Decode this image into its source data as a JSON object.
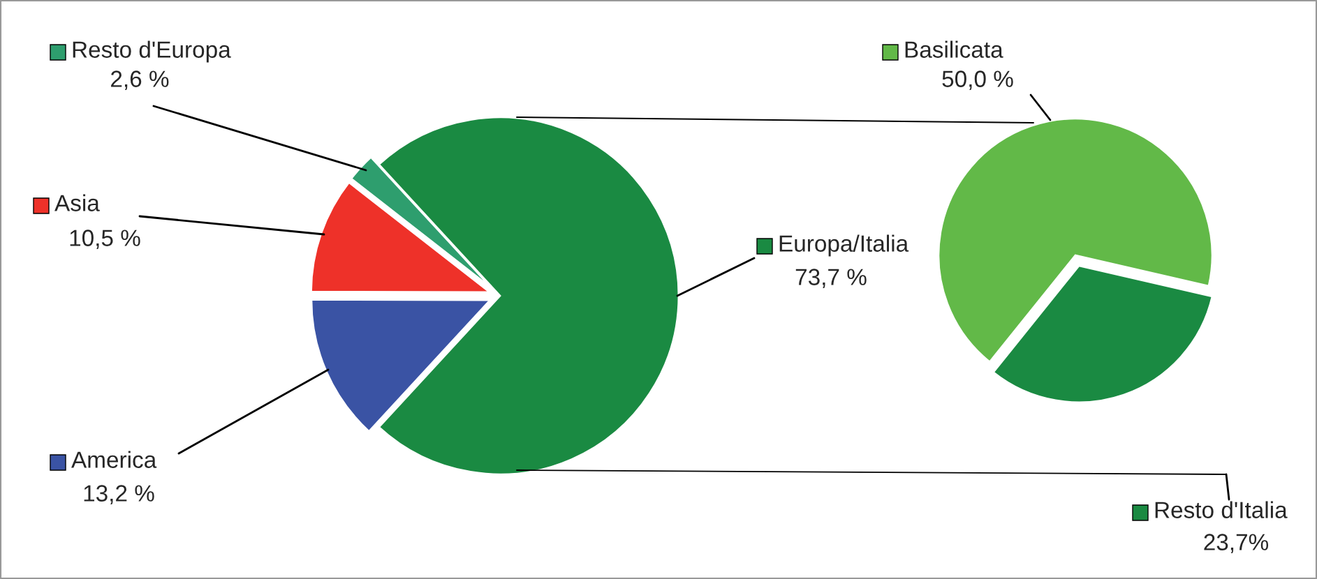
{
  "chart_data": [
    {
      "type": "pie",
      "categories": [
        "Europa/Italia",
        "Resto d'Europa",
        "Asia",
        "America"
      ],
      "values": [
        73.7,
        2.6,
        10.5,
        13.2
      ],
      "colors": [
        "#1a8a42",
        "#2e9e6e",
        "#ee3129",
        "#3a53a4"
      ],
      "value_labels": [
        "73,7 %",
        "2,6 %",
        "10,5 %",
        "13,2 %"
      ],
      "legend": "left"
    },
    {
      "type": "pie",
      "categories": [
        "Basilicata",
        "Resto d'Italia"
      ],
      "values": [
        50.0,
        23.7
      ],
      "colors": [
        "#62b948",
        "#1a8a42"
      ],
      "value_labels": [
        "50,0 %",
        "23,7%"
      ],
      "legend": "right"
    }
  ]
}
